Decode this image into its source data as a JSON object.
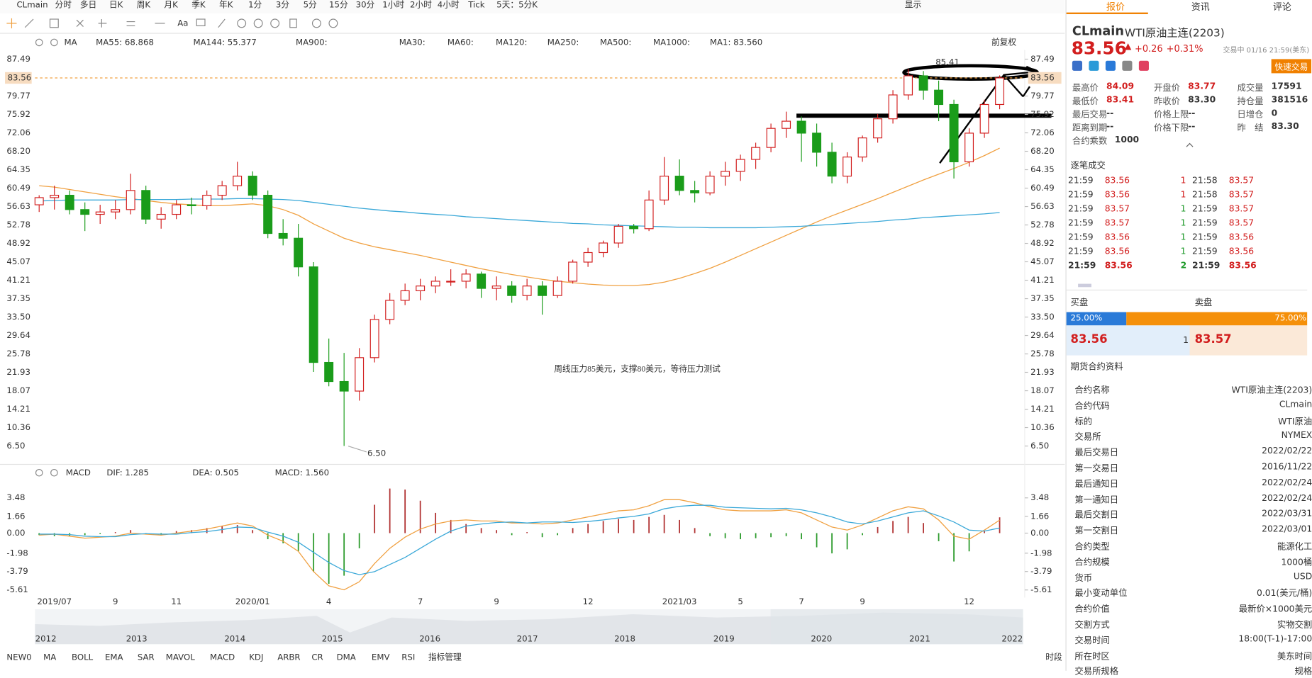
{
  "toolbar": {
    "symbol": "CLmain",
    "periods": [
      "分时",
      "多日",
      "日K",
      "周K",
      "月K",
      "季K",
      "年K",
      "1分",
      "3分",
      "5分",
      "15分",
      "30分",
      "1小时",
      "2小时",
      "4小时",
      "Tick",
      "5天：5分K"
    ],
    "display": "显示",
    "font_button": "Aa"
  },
  "chart_data": [
    {
      "type": "candlestick",
      "indicator": "MA",
      "adjust": "前复权",
      "categories": [
        null,
        "2019/07",
        null,
        null,
        null,
        "9",
        null,
        null,
        null,
        "11",
        null,
        null,
        null,
        null,
        "2020/01",
        null,
        null,
        null,
        null,
        "4",
        null,
        null,
        null,
        null,
        null,
        "7",
        null,
        null,
        null,
        null,
        "9",
        null,
        null,
        null,
        null,
        null,
        "12",
        null,
        null,
        null,
        null,
        null,
        "2021/03",
        null,
        null,
        null,
        "5",
        null,
        null,
        null,
        "7",
        null,
        null,
        null,
        "9",
        null,
        null,
        null,
        null,
        null,
        null,
        "12",
        null,
        null
      ],
      "open": [
        57,
        58.5,
        59,
        56,
        55,
        55.5,
        56,
        60,
        54,
        55,
        57,
        56.8,
        59,
        61,
        63,
        59,
        51,
        50,
        44,
        24,
        20,
        18,
        25,
        33,
        37,
        39,
        40,
        41,
        41,
        42.5,
        39.5,
        40,
        38,
        40,
        38,
        41,
        45,
        47,
        49,
        52.5,
        52,
        58,
        63,
        60,
        59.5,
        63,
        64,
        66.5,
        69,
        73,
        74.5,
        72,
        68,
        63,
        67,
        71,
        75,
        80,
        84,
        81,
        78,
        66,
        72,
        78
      ],
      "high": [
        59,
        61,
        60,
        57.5,
        57,
        58,
        63.5,
        61,
        56.5,
        58,
        58.5,
        60,
        62,
        66,
        64,
        60,
        54,
        53,
        45,
        29,
        26,
        27,
        34,
        38.5,
        40.5,
        41.5,
        42,
        43.5,
        43.5,
        43,
        42,
        41,
        41.5,
        41,
        42,
        45.5,
        48,
        49.5,
        53,
        53,
        60,
        67,
        66.5,
        62,
        64,
        66,
        67.5,
        70,
        74,
        76.5,
        75.5,
        74,
        70,
        68,
        71.5,
        76,
        81,
        85.41,
        85,
        83,
        79,
        73,
        79,
        84.09
      ],
      "low": [
        55.5,
        56,
        55,
        51.5,
        53,
        54,
        55,
        53,
        52,
        54,
        55,
        56,
        58,
        60,
        58,
        50,
        48.5,
        42,
        22,
        19,
        6.5,
        16,
        24,
        32,
        36,
        37,
        38.5,
        40,
        39.5,
        37.5,
        37,
        36.5,
        37,
        34,
        37.5,
        40.5,
        44,
        46,
        48,
        51,
        51.5,
        57,
        59,
        57.5,
        59,
        61,
        62,
        64.5,
        68,
        71,
        66,
        65,
        61.5,
        61.5,
        66,
        70,
        74,
        79,
        79,
        74.5,
        62.5,
        65,
        71,
        77
      ],
      "close": [
        58.5,
        59,
        56,
        55,
        55.5,
        56,
        60,
        54,
        55,
        57,
        56.8,
        59,
        61,
        63,
        59,
        51,
        50,
        44,
        24,
        20,
        18,
        25,
        33,
        37,
        39,
        40,
        41,
        41,
        42.5,
        39.5,
        40,
        38,
        40,
        38,
        41,
        45,
        47,
        49,
        52.5,
        52,
        58,
        63,
        60,
        59.5,
        63,
        64,
        66.5,
        69,
        73,
        74.5,
        72,
        68,
        63,
        67,
        71,
        75,
        80,
        84,
        81,
        78,
        66,
        72,
        78,
        83.56
      ],
      "up_color": "#d21e1e",
      "down_color": "#1a9c1a",
      "series": [
        {
          "name": "MA55: 68.868",
          "color": "#f0a040",
          "values": [
            61,
            60.7,
            60.2,
            59.7,
            59.2,
            58.7,
            58.3,
            57.9,
            57.5,
            57.2,
            57.0,
            56.8,
            56.8,
            57.0,
            57.2,
            56.8,
            56.0,
            54.8,
            53.0,
            51.5,
            50.0,
            49.0,
            48.2,
            47.6,
            47.0,
            46.4,
            45.7,
            45.0,
            44.3,
            43.6,
            43.0,
            42.4,
            41.9,
            41.4,
            41.0,
            40.7,
            40.4,
            40.2,
            40.1,
            40.1,
            40.3,
            40.8,
            41.6,
            42.6,
            43.7,
            45.0,
            46.4,
            47.8,
            49.2,
            50.6,
            52.0,
            53.4,
            54.7,
            55.9,
            57.1,
            58.3,
            59.6,
            60.9,
            62.2,
            63.4,
            64.6,
            65.9,
            67.3,
            68.868
          ]
        },
        {
          "name": "MA144: 55.377",
          "color": "#3aa8d8",
          "values": [
            57.8,
            57.9,
            58.0,
            58.0,
            58.0,
            58.0,
            58.1,
            58.1,
            58.1,
            58.1,
            58.2,
            58.2,
            58.2,
            58.3,
            58.3,
            58.2,
            58.1,
            57.9,
            57.5,
            57.1,
            56.7,
            56.3,
            56.0,
            55.7,
            55.5,
            55.2,
            55.0,
            54.8,
            54.5,
            54.3,
            54.1,
            53.9,
            53.7,
            53.5,
            53.3,
            53.1,
            53.0,
            52.8,
            52.7,
            52.6,
            52.5,
            52.4,
            52.3,
            52.3,
            52.2,
            52.2,
            52.2,
            52.2,
            52.3,
            52.4,
            52.5,
            52.7,
            52.9,
            53.1,
            53.3,
            53.5,
            53.8,
            54.0,
            54.3,
            54.5,
            54.7,
            54.9,
            55.1,
            55.377
          ]
        }
      ],
      "legend_extra": [
        {
          "name": "MA900:",
          "color": "#d040d0"
        },
        {
          "name": "MA30:",
          "color": "#a8d0f0"
        },
        {
          "name": "MA60:",
          "color": "#a8e0c8"
        },
        {
          "name": "MA120:",
          "color": "#f0b0c0"
        },
        {
          "name": "MA250:",
          "color": "#a0d8f0"
        },
        {
          "name": "MA500:",
          "color": "#f0d090"
        },
        {
          "name": "MA1000:",
          "color": "#e8b8e8"
        },
        {
          "name": "MA1: 83.560",
          "color": "#555555"
        }
      ],
      "ylim": [
        3.0,
        89.07
      ],
      "yticks": [
        87.49,
        79.77,
        75.92,
        72.06,
        {
          "value": 68.2,
          "label": "68.20"
        },
        64.35,
        60.49,
        56.63,
        52.78,
        48.92,
        45.07,
        41.21,
        37.35,
        {
          "value": 33.5,
          "label": "33.50"
        },
        29.64,
        25.78,
        21.93,
        18.07,
        14.21,
        10.36,
        {
          "value": 6.5,
          "label": "6.50"
        }
      ],
      "last_price": 83.56,
      "annotations": [
        "85.41",
        "6.50",
        "周线压力85美元，支撑80美元，等待压力测试"
      ]
    },
    {
      "type": "macd",
      "indicator": "MACD",
      "series": [
        {
          "name": "DIF: 1.285",
          "color": "#f0a040",
          "values": [
            -0.2,
            -0.1,
            -0.3,
            -0.5,
            -0.4,
            -0.3,
            0,
            -0.1,
            -0.2,
            0,
            0.2,
            0.4,
            0.7,
            1.0,
            0.7,
            -0.2,
            -0.8,
            -1.8,
            -3.8,
            -5.2,
            -5.6,
            -4.8,
            -3.0,
            -1.5,
            -0.4,
            0.4,
            0.9,
            1.2,
            1.3,
            1.2,
            1.2,
            1.0,
            1.0,
            0.9,
            1.0,
            1.3,
            1.6,
            1.9,
            2.2,
            2.3,
            2.7,
            3.3,
            3.3,
            3.0,
            2.6,
            2.3,
            2.2,
            2.2,
            2.2,
            2.3,
            2.0,
            1.3,
            0.6,
            0.3,
            0.8,
            1.5,
            2.2,
            2.6,
            2.4,
            1.3,
            -0.3,
            -0.6,
            0.3,
            1.285
          ]
        },
        {
          "name": "DEA: 0.505",
          "color": "#3aa8d8",
          "values": [
            -0.1,
            -0.1,
            -0.15,
            -0.3,
            -0.35,
            -0.35,
            -0.15,
            -0.05,
            -0.1,
            -0.1,
            0.05,
            0.15,
            0.35,
            0.6,
            0.55,
            0.1,
            -0.3,
            -0.9,
            -1.9,
            -2.9,
            -3.7,
            -4.1,
            -3.8,
            -3.1,
            -2.4,
            -1.5,
            -0.6,
            0.2,
            0.7,
            0.9,
            1.05,
            1.1,
            1.0,
            1.1,
            1.1,
            1.05,
            1.15,
            1.3,
            1.5,
            1.65,
            1.9,
            2.4,
            2.65,
            2.75,
            2.75,
            2.55,
            2.5,
            2.45,
            2.4,
            2.45,
            2.3,
            2.0,
            1.6,
            1.1,
            0.9,
            1.2,
            1.6,
            2.0,
            2.2,
            1.7,
            1.1,
            0.3,
            0.2,
            0.505
          ]
        },
        {
          "name": "MACD: 1.560",
          "color": "#d070d0",
          "up_color": "#b03030",
          "down_color": "#2a9a2a",
          "values": [
            -0.2,
            -0.3,
            -0.3,
            -0.2,
            -0.1,
            0.1,
            0.3,
            -0.1,
            -0.2,
            0.2,
            0.3,
            0.5,
            0.7,
            0.8,
            0.3,
            -0.6,
            -1.0,
            -1.8,
            -3.8,
            -5.0,
            -4.2,
            -1.5,
            2.8,
            4.4,
            4.3,
            3.2,
            2.0,
            1.3,
            0.9,
            0.5,
            0.3,
            -0.2,
            0.1,
            -0.4,
            -0.2,
            0.5,
            0.9,
            1.2,
            1.4,
            1.3,
            1.6,
            1.8,
            1.3,
            0.5,
            -0.3,
            -0.5,
            -0.6,
            -0.5,
            -0.4,
            -0.3,
            -0.6,
            -1.4,
            -2.0,
            -1.6,
            -0.2,
            0.6,
            1.2,
            1.6,
            1.0,
            -0.8,
            -2.8,
            -1.8,
            0.2,
            1.56
          ]
        }
      ],
      "ylim": [
        -6.36,
        5.14
      ],
      "yticks": [
        3.48,
        1.66,
        {
          "value": 0,
          "label": "0.00"
        },
        -1.98,
        -3.79,
        -5.61
      ]
    }
  ],
  "navigator": {
    "years": [
      "2012",
      "2013",
      "2014",
      "2015",
      "2016",
      "2017",
      "2018",
      "2019",
      "2020",
      "2021",
      "2022"
    ]
  },
  "indicator_tabs": [
    "NEW0",
    "MA",
    "BOLL",
    "EMA",
    "SAR",
    "MAVOL",
    "MACD",
    "KDJ",
    "ARBR",
    "CR",
    "DMA",
    "EMV",
    "RSI",
    "指标管理"
  ],
  "period_label": "时段",
  "panel": {
    "tabs": [
      "报价",
      "资讯",
      "评论"
    ],
    "symbol": "CLmain",
    "name": "WTI原油主连(2203)",
    "price": "83.56",
    "change": "+0.26",
    "pct": "+0.31%",
    "status": "交易中 01/16 21:59(美东)",
    "quick": "快速交易",
    "stats": [
      [
        "最高价",
        "84.09"
      ],
      [
        "开盘价",
        "83.77"
      ],
      [
        "成交量",
        "17591"
      ],
      [
        "最低价",
        "83.41"
      ],
      [
        "昨收价",
        "83.30"
      ],
      [
        "持仓量",
        "381516"
      ],
      [
        "最后交易",
        "--"
      ],
      [
        "价格上限",
        "--"
      ],
      [
        "日增仓",
        "0"
      ],
      [
        "距离到期",
        "--"
      ],
      [
        "价格下限",
        "--"
      ],
      [
        "昨　结",
        "83.30"
      ],
      [
        "合约乘数",
        "1000"
      ]
    ],
    "trades_title": "逐笔成交",
    "trades": [
      [
        "21:59",
        "83.56",
        "1",
        "21:58",
        "83.57"
      ],
      [
        "21:59",
        "83.56",
        "1",
        "21:58",
        "83.57"
      ],
      [
        "21:59",
        "83.57",
        "1",
        "21:59",
        "83.57"
      ],
      [
        "21:59",
        "83.57",
        "1",
        "21:59",
        "83.57"
      ],
      [
        "21:59",
        "83.56",
        "1",
        "21:59",
        "83.56"
      ],
      [
        "21:59",
        "83.56",
        "1",
        "21:59",
        "83.56"
      ],
      [
        "21:59",
        "83.56",
        "2",
        "21:59",
        "83.56"
      ]
    ],
    "book": {
      "bid_title": "买盘",
      "ask_title": "卖盘",
      "bid_pct": {
        "value": 25,
        "label": "25.00%"
      },
      "ask_pct": {
        "value": 75,
        "label": "75.00%"
      },
      "bid": "83.56",
      "bid_qty": "1",
      "ask": "83.57"
    },
    "info_title": "期货合约资料",
    "info": [
      [
        "合约名称",
        "WTI原油主连(2203)"
      ],
      [
        "合约代码",
        "CLmain"
      ],
      [
        "标的",
        "WTI原油"
      ],
      [
        "交易所",
        "NYMEX"
      ],
      [
        "最后交易日",
        "2022/02/22"
      ],
      [
        "第一交易日",
        "2016/11/22"
      ],
      [
        "最后通知日",
        "2022/02/24"
      ],
      [
        "第一通知日",
        "2022/02/24"
      ],
      [
        "最后交割日",
        "2022/03/31"
      ],
      [
        "第一交割日",
        "2022/03/01"
      ],
      [
        "合约类型",
        "能源化工"
      ],
      [
        "合约规模",
        "1000桶"
      ],
      [
        "货币",
        "USD"
      ],
      [
        "最小变动单位",
        "0.01(美元/桶)"
      ],
      [
        "合约价值",
        "最新价×1000美元"
      ],
      [
        "交割方式",
        "实物交割"
      ],
      [
        "交易时间",
        "18:00(T-1)-17:00"
      ],
      [
        "所在时区",
        "美东时间"
      ],
      [
        "交易所规格",
        "规格"
      ]
    ]
  }
}
